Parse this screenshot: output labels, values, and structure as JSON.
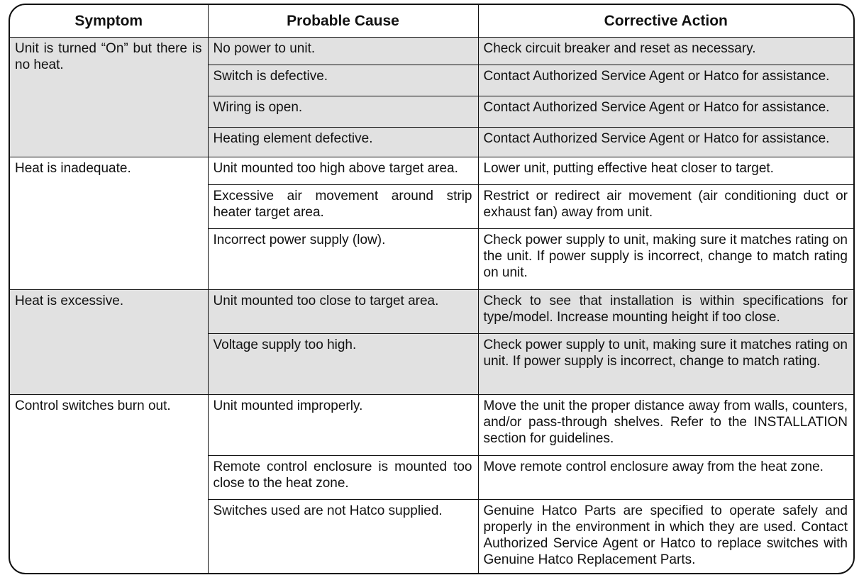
{
  "headers": [
    "Symptom",
    "Probable Cause",
    "Corrective Action"
  ],
  "shaded_color": "#e1e1e1",
  "groups": [
    {
      "symptom": "Unit is turned “On” but there is no heat.",
      "shaded": true,
      "rows": [
        {
          "cause": "No power to unit.",
          "action": "Check circuit breaker and reset as necessary."
        },
        {
          "cause": "Switch is defective.",
          "action": "Contact Authorized Service Agent or Hatco for assistance."
        },
        {
          "cause": "Wiring is open.",
          "action": "Contact Authorized Service Agent or Hatco for assistance."
        },
        {
          "cause": "Heating element defective.",
          "action": "Contact Authorized Service Agent or Hatco for assistance."
        }
      ]
    },
    {
      "symptom": "Heat is inadequate.",
      "shaded": false,
      "rows": [
        {
          "cause": "Unit mounted too high above target area.",
          "action": "Lower unit, putting effective heat closer to target."
        },
        {
          "cause": "Excessive air movement around strip heater target area.",
          "action": "Restrict or redirect air movement (air conditioning duct or exhaust fan) away from unit."
        },
        {
          "cause": "Incorrect power supply (low).",
          "action": "Check power supply to unit, making sure it matches rating on the unit. If power supply is incorrect, change to match rating on unit."
        }
      ]
    },
    {
      "symptom": "Heat is excessive.",
      "shaded": true,
      "rows": [
        {
          "cause": "Unit mounted too close to target area.",
          "action": "Check to see that installation is within specifications for type/model. Increase mounting height if too close."
        },
        {
          "cause": "Voltage supply too high.",
          "action": "Check power supply to unit, making sure it matches rating on unit. If power supply is incorrect, change to match rating."
        }
      ]
    },
    {
      "symptom": "Control switches burn out.",
      "shaded": false,
      "rows": [
        {
          "cause": "Unit mounted improperly.",
          "action": "Move the unit the proper distance away from walls, counters, and/or pass-through shelves. Refer to the INSTALLATION section for guidelines."
        },
        {
          "cause": "Remote control enclosure is mounted too close to the heat zone.",
          "action": "Move remote control enclosure away from the heat zone."
        },
        {
          "cause": "Switches used are not Hatco supplied.",
          "action": "Genuine Hatco Parts are specified to operate safely and properly in the environment in which they are used. Contact Authorized Service Agent or Hatco to replace switches with Genuine Hatco Replacement Parts."
        }
      ]
    }
  ]
}
